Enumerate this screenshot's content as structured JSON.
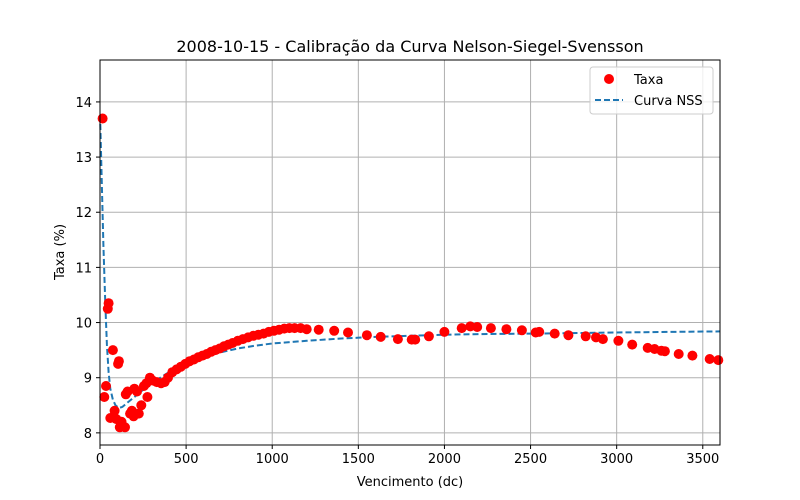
{
  "chart_data": {
    "type": "scatter",
    "title": "2008-10-15 - Calibração da Curva Nelson-Siegel-Svensson",
    "xlabel": "Vencimento (dc)",
    "ylabel": "Taxa (%)",
    "xlim": [
      0,
      3600
    ],
    "ylim": [
      7.78,
      14.76
    ],
    "xticks": [
      0,
      500,
      1000,
      1500,
      2000,
      2500,
      3000,
      3500
    ],
    "yticks": [
      8,
      9,
      10,
      11,
      12,
      13,
      14
    ],
    "grid": true,
    "legend_position": "top-right",
    "series": [
      {
        "name": "Taxa",
        "kind": "scatter",
        "color": "#ff0000",
        "points": [
          [
            15,
            13.7
          ],
          [
            25,
            8.65
          ],
          [
            35,
            8.85
          ],
          [
            45,
            10.25
          ],
          [
            50,
            10.35
          ],
          [
            60,
            8.27
          ],
          [
            75,
            9.5
          ],
          [
            85,
            8.4
          ],
          [
            95,
            8.25
          ],
          [
            105,
            9.25
          ],
          [
            110,
            9.3
          ],
          [
            115,
            8.1
          ],
          [
            125,
            8.2
          ],
          [
            145,
            8.1
          ],
          [
            150,
            8.7
          ],
          [
            160,
            8.75
          ],
          [
            175,
            8.35
          ],
          [
            185,
            8.4
          ],
          [
            195,
            8.3
          ],
          [
            200,
            8.8
          ],
          [
            215,
            8.75
          ],
          [
            225,
            8.35
          ],
          [
            240,
            8.5
          ],
          [
            255,
            8.85
          ],
          [
            270,
            8.9
          ],
          [
            275,
            8.65
          ],
          [
            290,
            9.0
          ],
          [
            305,
            8.95
          ],
          [
            330,
            8.92
          ],
          [
            355,
            8.9
          ],
          [
            375,
            8.92
          ],
          [
            395,
            9.0
          ],
          [
            420,
            9.1
          ],
          [
            445,
            9.15
          ],
          [
            470,
            9.2
          ],
          [
            495,
            9.25
          ],
          [
            520,
            9.3
          ],
          [
            545,
            9.33
          ],
          [
            570,
            9.37
          ],
          [
            595,
            9.4
          ],
          [
            620,
            9.43
          ],
          [
            645,
            9.47
          ],
          [
            670,
            9.5
          ],
          [
            695,
            9.53
          ],
          [
            720,
            9.57
          ],
          [
            745,
            9.6
          ],
          [
            770,
            9.63
          ],
          [
            800,
            9.67
          ],
          [
            830,
            9.7
          ],
          [
            860,
            9.73
          ],
          [
            890,
            9.76
          ],
          [
            920,
            9.78
          ],
          [
            950,
            9.8
          ],
          [
            980,
            9.83
          ],
          [
            1010,
            9.85
          ],
          [
            1040,
            9.87
          ],
          [
            1070,
            9.89
          ],
          [
            1100,
            9.9
          ],
          [
            1130,
            9.9
          ],
          [
            1165,
            9.9
          ],
          [
            1200,
            9.88
          ],
          [
            1270,
            9.87
          ],
          [
            1360,
            9.85
          ],
          [
            1440,
            9.82
          ],
          [
            1550,
            9.77
          ],
          [
            1630,
            9.74
          ],
          [
            1730,
            9.7
          ],
          [
            1810,
            9.69
          ],
          [
            1830,
            9.69
          ],
          [
            1910,
            9.75
          ],
          [
            2000,
            9.83
          ],
          [
            2100,
            9.9
          ],
          [
            2150,
            9.93
          ],
          [
            2190,
            9.92
          ],
          [
            2270,
            9.9
          ],
          [
            2360,
            9.88
          ],
          [
            2450,
            9.86
          ],
          [
            2530,
            9.82
          ],
          [
            2550,
            9.83
          ],
          [
            2640,
            9.8
          ],
          [
            2720,
            9.77
          ],
          [
            2820,
            9.75
          ],
          [
            2880,
            9.73
          ],
          [
            2920,
            9.7
          ],
          [
            3010,
            9.67
          ],
          [
            3090,
            9.6
          ],
          [
            3180,
            9.54
          ],
          [
            3220,
            9.52
          ],
          [
            3260,
            9.49
          ],
          [
            3280,
            9.48
          ],
          [
            3360,
            9.43
          ],
          [
            3440,
            9.4
          ],
          [
            3540,
            9.34
          ],
          [
            3590,
            9.32
          ]
        ]
      },
      {
        "name": "Curva NSS",
        "kind": "line",
        "dashed": true,
        "color": "#1f77b4",
        "points": [
          [
            2,
            13.6
          ],
          [
            10,
            12.6
          ],
          [
            20,
            11.4
          ],
          [
            30,
            10.4
          ],
          [
            40,
            9.6
          ],
          [
            50,
            9.1
          ],
          [
            60,
            8.8
          ],
          [
            75,
            8.6
          ],
          [
            90,
            8.5
          ],
          [
            110,
            8.45
          ],
          [
            130,
            8.47
          ],
          [
            160,
            8.55
          ],
          [
            200,
            8.65
          ],
          [
            250,
            8.78
          ],
          [
            300,
            8.9
          ],
          [
            350,
            9.0
          ],
          [
            400,
            9.1
          ],
          [
            500,
            9.25
          ],
          [
            600,
            9.37
          ],
          [
            700,
            9.46
          ],
          [
            800,
            9.53
          ],
          [
            900,
            9.58
          ],
          [
            1000,
            9.62
          ],
          [
            1200,
            9.67
          ],
          [
            1400,
            9.71
          ],
          [
            1600,
            9.74
          ],
          [
            1800,
            9.76
          ],
          [
            2000,
            9.78
          ],
          [
            2200,
            9.79
          ],
          [
            2500,
            9.8
          ],
          [
            2800,
            9.81
          ],
          [
            3000,
            9.82
          ],
          [
            3300,
            9.83
          ],
          [
            3600,
            9.84
          ]
        ]
      }
    ]
  }
}
